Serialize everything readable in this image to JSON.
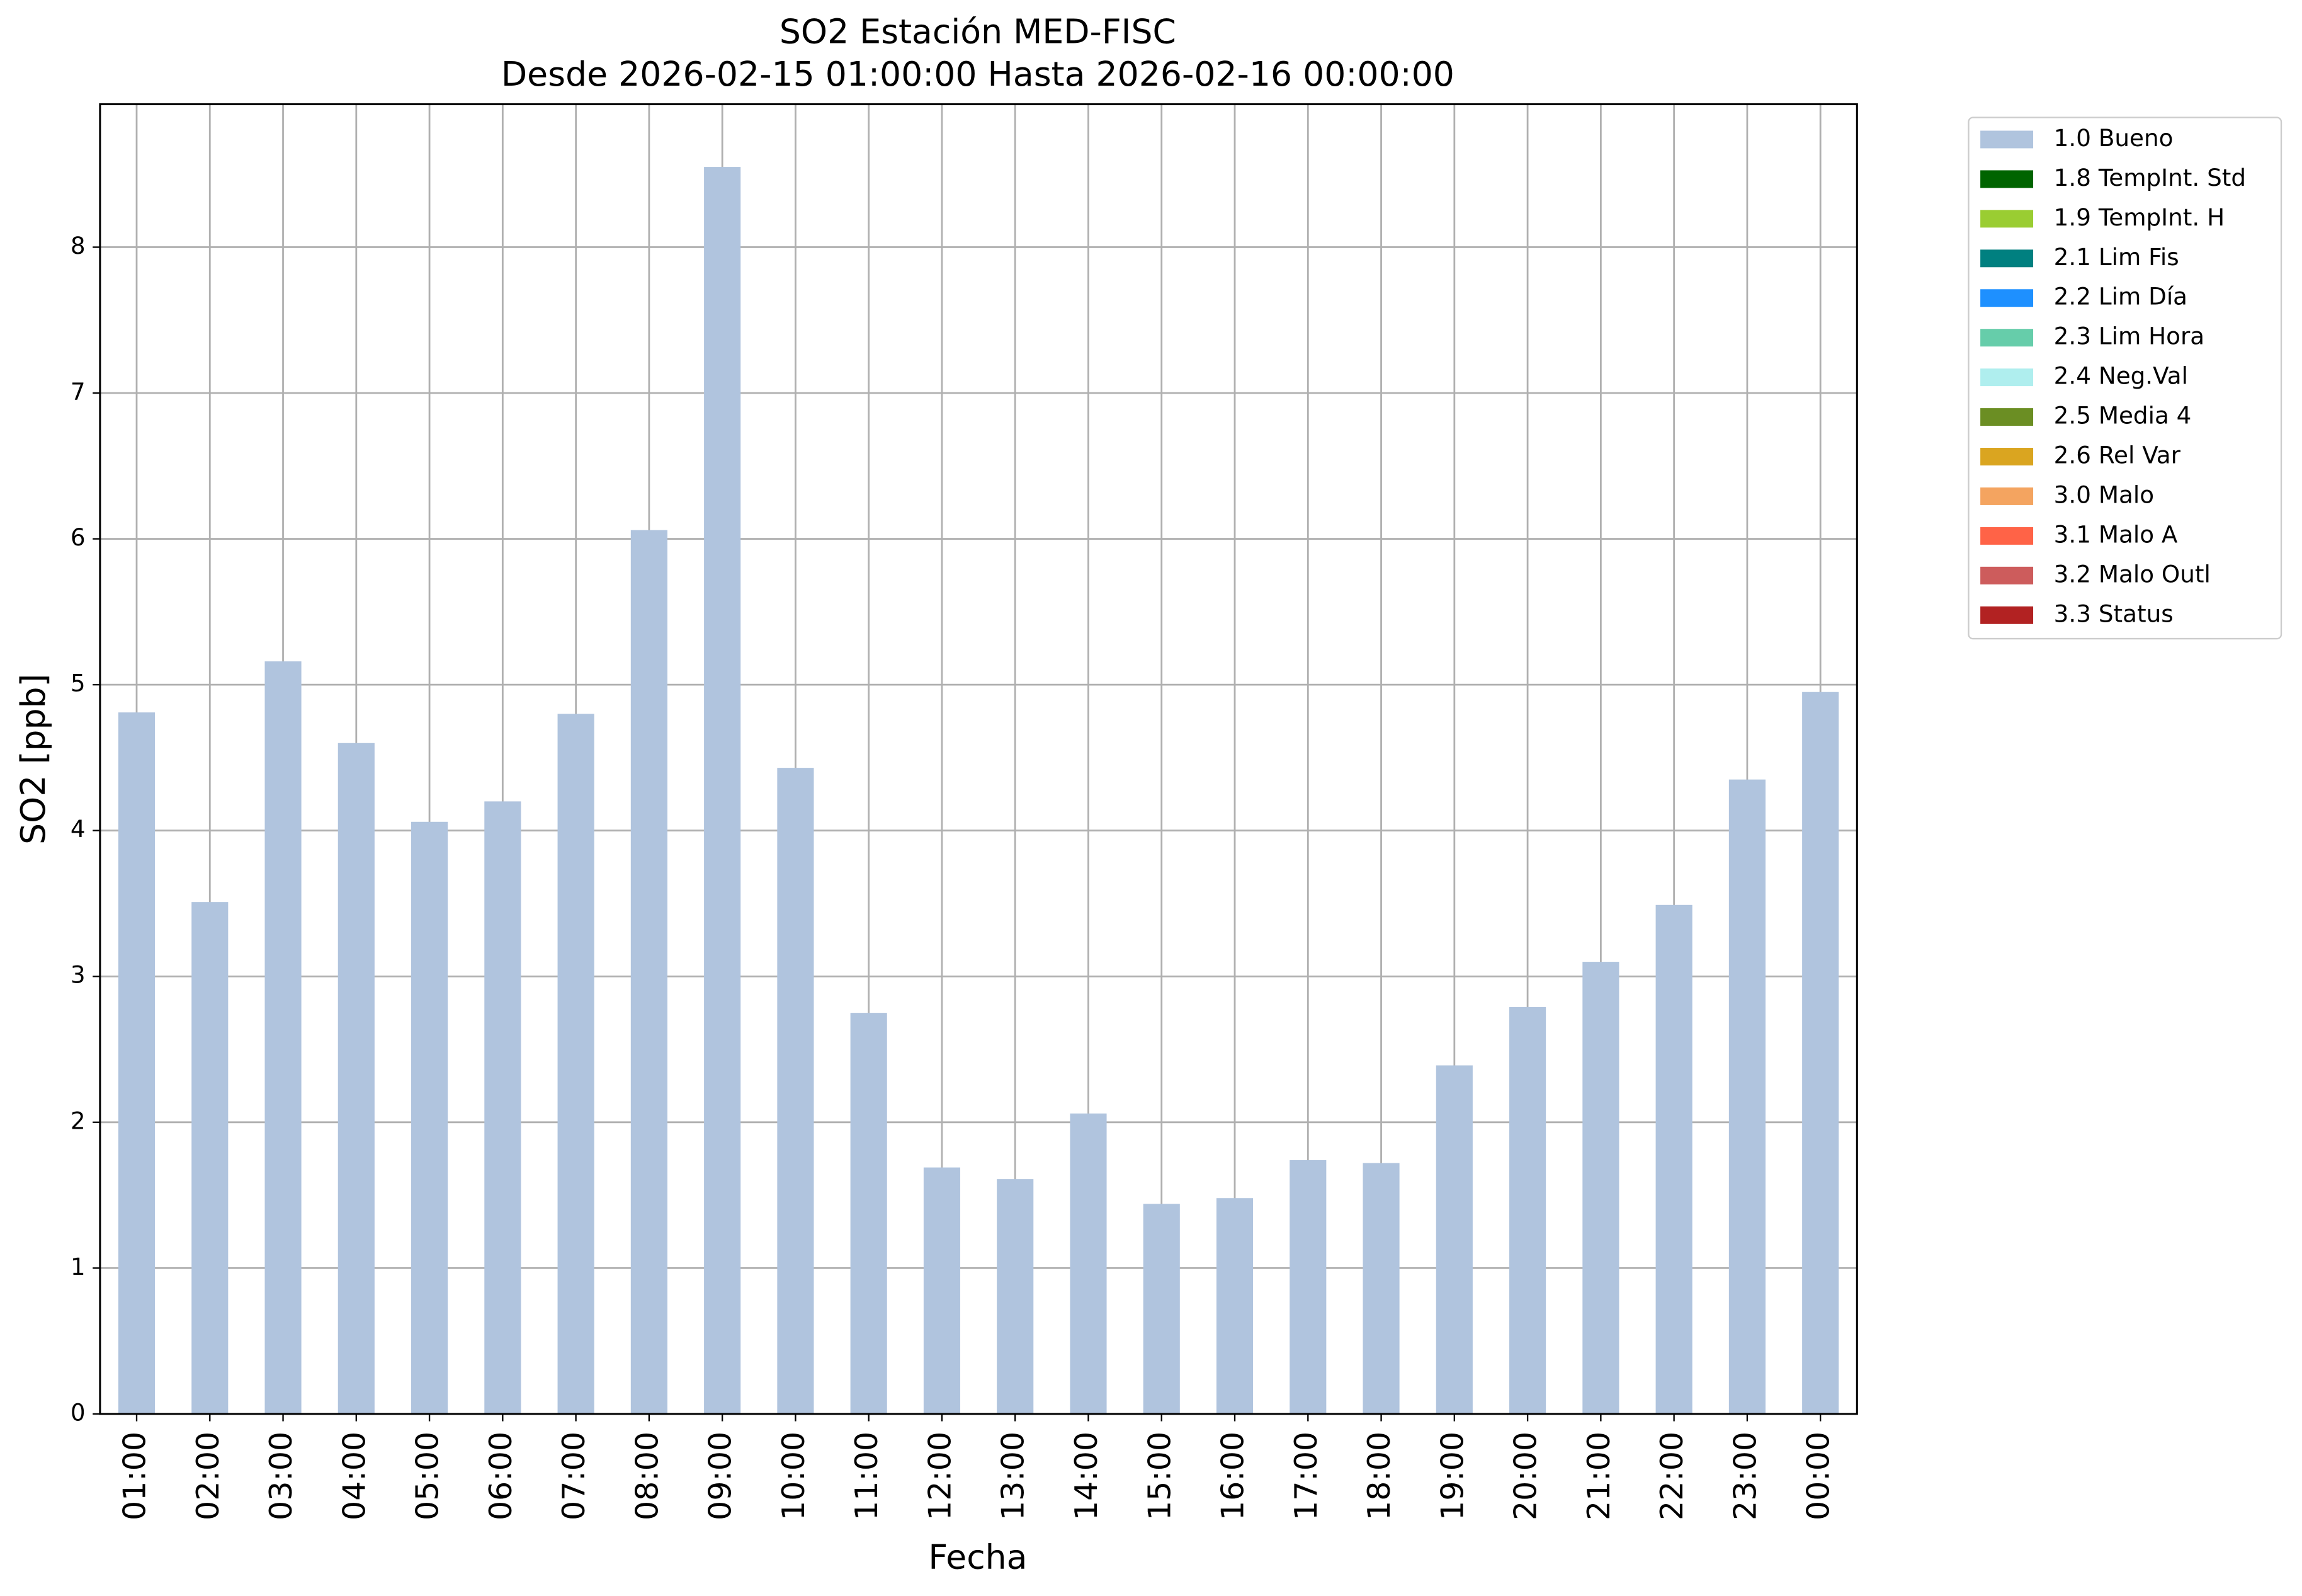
{
  "chart_data": {
    "type": "bar",
    "title": "SO2 Estación MED-FISC",
    "subtitle": "Desde 2026-02-15 01:00:00 Hasta 2026-02-16 00:00:00",
    "x_label": "Fecha",
    "y_label": "SO2 [ppb]",
    "categories": [
      "01:00",
      "02:00",
      "03:00",
      "04:00",
      "05:00",
      "06:00",
      "07:00",
      "08:00",
      "09:00",
      "10:00",
      "11:00",
      "12:00",
      "13:00",
      "14:00",
      "15:00",
      "16:00",
      "17:00",
      "18:00",
      "19:00",
      "20:00",
      "21:00",
      "22:00",
      "23:00",
      "00:00"
    ],
    "series": [
      {
        "name": "1.0 Bueno",
        "color": "#b0c4de",
        "values": [
          4.81,
          3.51,
          5.16,
          4.6,
          4.06,
          4.2,
          4.8,
          6.06,
          8.55,
          4.43,
          2.75,
          1.69,
          1.61,
          2.06,
          1.44,
          1.48,
          1.74,
          1.72,
          2.39,
          2.79,
          3.1,
          3.49,
          4.35,
          4.95
        ]
      },
      {
        "name": "1.8 TempInt. Std",
        "color": "#006400"
      },
      {
        "name": "1.9 TempInt. H",
        "color": "#9acd32"
      },
      {
        "name": "2.1 Lim Fis",
        "color": "#008080"
      },
      {
        "name": "2.2 Lim Día",
        "color": "#1e90ff"
      },
      {
        "name": "2.3 Lim Hora",
        "color": "#66cdaa"
      },
      {
        "name": "2.4 Neg.Val",
        "color": "#afeeee"
      },
      {
        "name": "2.5 Media 4",
        "color": "#6b8e23"
      },
      {
        "name": "2.6 Rel Var",
        "color": "#daa520"
      },
      {
        "name": "3.0 Malo",
        "color": "#f4a460"
      },
      {
        "name": "3.1 Malo A",
        "color": "#ff6347"
      },
      {
        "name": "3.2 Malo Outl",
        "color": "#cd5c5c"
      },
      {
        "name": "3.3 Status",
        "color": "#b22222"
      }
    ],
    "ylim": [
      0,
      8.98
    ],
    "yticks": [
      0,
      1,
      2,
      3,
      4,
      5,
      6,
      7,
      8
    ],
    "grid": true,
    "legend": "outside-upper-right"
  }
}
